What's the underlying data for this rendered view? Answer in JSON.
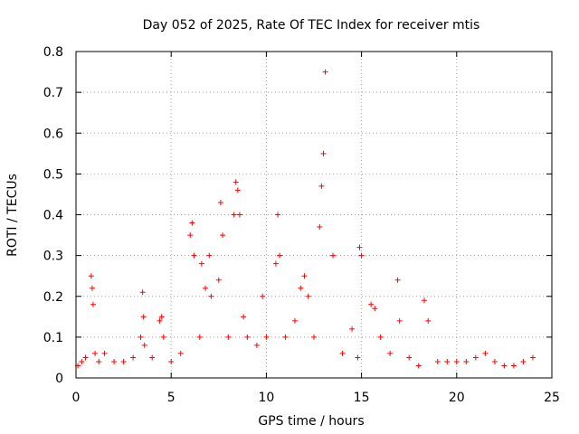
{
  "chart_data": {
    "type": "scatter",
    "title": "Day 052 of 2025, Rate Of TEC Index for receiver mtis",
    "xlabel": "GPS time / hours",
    "ylabel": "ROTI / TECUs",
    "xlim": [
      0,
      25
    ],
    "ylim": [
      0,
      0.8
    ],
    "xticks": [
      "0",
      "5",
      "10",
      "15",
      "20",
      "25"
    ],
    "yticks": [
      "0",
      "0.1",
      "0.2",
      "0.3",
      "0.4",
      "0.5",
      "0.6",
      "0.7",
      "0.8"
    ],
    "grid": true,
    "marker": "plus",
    "color": "#ff0000",
    "x": [
      0.1,
      0.3,
      0.5,
      0.8,
      0.85,
      0.9,
      1.0,
      1.2,
      1.5,
      2.0,
      2.5,
      3.0,
      3.4,
      3.5,
      3.55,
      3.6,
      4.0,
      4.4,
      4.5,
      4.6,
      5.0,
      5.5,
      6.0,
      6.1,
      6.2,
      6.5,
      6.6,
      6.8,
      7.0,
      7.1,
      7.5,
      7.6,
      7.7,
      8.0,
      8.3,
      8.4,
      8.5,
      8.6,
      8.8,
      9.0,
      9.5,
      9.8,
      10.0,
      10.5,
      10.6,
      10.7,
      11.0,
      11.5,
      11.8,
      12.0,
      12.2,
      12.5,
      12.8,
      12.9,
      13.0,
      13.1,
      13.5,
      14.0,
      14.5,
      14.8,
      14.9,
      15.0,
      15.5,
      15.7,
      16.0,
      16.5,
      16.9,
      17.0,
      17.5,
      18.0,
      18.3,
      18.5,
      19.0,
      19.5,
      20.0,
      20.5,
      21.0,
      21.5,
      22.0,
      22.5,
      23.0,
      23.5,
      24.0
    ],
    "y": [
      0.03,
      0.04,
      0.05,
      0.25,
      0.22,
      0.18,
      0.06,
      0.04,
      0.06,
      0.04,
      0.04,
      0.05,
      0.1,
      0.21,
      0.15,
      0.08,
      0.05,
      0.14,
      0.15,
      0.1,
      0.04,
      0.06,
      0.35,
      0.38,
      0.3,
      0.1,
      0.28,
      0.22,
      0.3,
      0.2,
      0.24,
      0.43,
      0.35,
      0.1,
      0.4,
      0.48,
      0.46,
      0.4,
      0.15,
      0.1,
      0.08,
      0.2,
      0.1,
      0.28,
      0.4,
      0.3,
      0.1,
      0.14,
      0.22,
      0.25,
      0.2,
      0.1,
      0.37,
      0.47,
      0.55,
      0.75,
      0.3,
      0.06,
      0.12,
      0.05,
      0.32,
      0.3,
      0.18,
      0.17,
      0.1,
      0.06,
      0.24,
      0.14,
      0.05,
      0.03,
      0.19,
      0.14,
      0.04,
      0.04,
      0.04,
      0.04,
      0.05,
      0.06,
      0.04,
      0.03,
      0.03,
      0.04,
      0.05
    ]
  }
}
